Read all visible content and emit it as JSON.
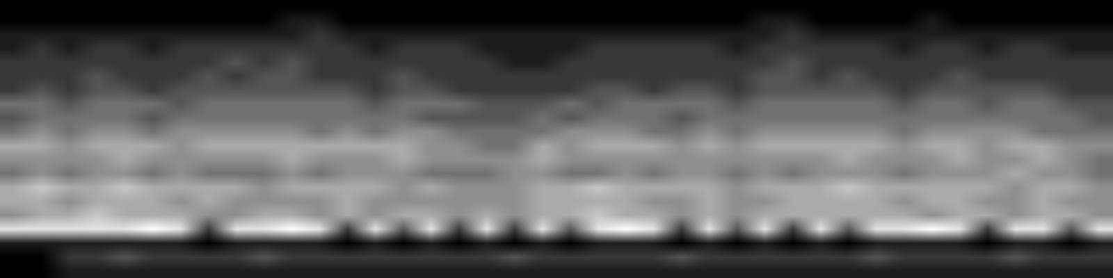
{
  "chart_data": {
    "type": "heatmap",
    "color": "gray",
    "tick_labels": false,
    "zlim": [
      0,
      9
    ],
    "cells": [
      [
        0,
        0,
        0,
        0,
        0,
        0,
        0,
        0,
        0,
        0,
        0,
        0,
        0,
        0,
        0,
        0,
        0,
        0,
        0,
        0,
        0,
        0,
        0,
        0,
        0,
        0,
        0,
        0,
        0,
        0,
        0,
        0,
        0,
        0,
        0,
        0,
        0,
        0,
        0,
        0
      ],
      [
        0,
        0,
        0,
        0,
        0,
        0,
        0,
        0,
        0,
        0,
        1,
        1,
        0,
        0,
        0,
        0,
        0,
        0,
        0,
        0,
        0,
        0,
        0,
        0,
        0,
        0,
        0,
        1,
        1,
        0,
        0,
        0,
        0,
        1,
        0,
        0,
        0,
        0,
        0,
        0
      ],
      [
        1,
        1,
        1,
        1,
        1,
        1,
        1,
        1,
        1,
        1,
        1,
        2,
        1,
        1,
        1,
        1,
        1,
        1,
        1,
        1,
        1,
        1,
        1,
        1,
        1,
        1,
        1,
        1,
        2,
        1,
        1,
        1,
        1,
        1,
        1,
        1,
        1,
        1,
        1,
        1
      ],
      [
        1,
        2,
        1,
        2,
        2,
        1,
        2,
        2,
        2,
        2,
        2,
        2,
        2,
        1,
        2,
        2,
        2,
        1,
        1,
        1,
        1,
        2,
        2,
        2,
        2,
        2,
        1,
        2,
        2,
        2,
        2,
        2,
        1,
        2,
        2,
        1,
        2,
        2,
        1,
        1
      ],
      [
        2,
        2,
        2,
        2,
        2,
        2,
        2,
        2,
        3,
        2,
        3,
        2,
        2,
        2,
        2,
        2,
        2,
        2,
        1,
        1,
        2,
        2,
        2,
        2,
        2,
        2,
        2,
        2,
        3,
        2,
        2,
        2,
        2,
        2,
        2,
        2,
        2,
        2,
        2,
        2
      ],
      [
        2,
        2,
        2,
        3,
        2,
        2,
        2,
        3,
        2,
        3,
        3,
        2,
        2,
        2,
        3,
        2,
        2,
        2,
        2,
        2,
        2,
        2,
        2,
        2,
        2,
        2,
        2,
        3,
        3,
        2,
        3,
        2,
        2,
        2,
        3,
        2,
        2,
        2,
        2,
        2
      ],
      [
        2,
        3,
        2,
        3,
        3,
        2,
        3,
        3,
        3,
        3,
        3,
        3,
        3,
        2,
        3,
        3,
        2,
        2,
        2,
        2,
        2,
        3,
        3,
        2,
        3,
        3,
        2,
        3,
        3,
        3,
        3,
        3,
        2,
        3,
        3,
        3,
        3,
        3,
        2,
        2
      ],
      [
        4,
        4,
        3,
        4,
        4,
        4,
        3,
        4,
        4,
        4,
        4,
        4,
        4,
        3,
        4,
        4,
        4,
        3,
        3,
        3,
        4,
        3,
        4,
        4,
        4,
        4,
        3,
        4,
        4,
        4,
        4,
        4,
        3,
        4,
        4,
        3,
        4,
        4,
        3,
        3
      ],
      [
        3,
        4,
        4,
        4,
        4,
        3,
        4,
        4,
        4,
        4,
        4,
        4,
        4,
        4,
        4,
        3,
        3,
        3,
        3,
        4,
        3,
        4,
        4,
        4,
        3,
        4,
        4,
        4,
        4,
        4,
        4,
        4,
        4,
        4,
        4,
        4,
        4,
        4,
        4,
        3
      ],
      [
        4,
        5,
        4,
        5,
        5,
        4,
        5,
        5,
        5,
        5,
        5,
        4,
        5,
        4,
        5,
        5,
        4,
        4,
        4,
        4,
        5,
        5,
        5,
        4,
        4,
        5,
        4,
        5,
        5,
        5,
        5,
        5,
        4,
        5,
        5,
        5,
        5,
        4,
        4,
        4
      ],
      [
        6,
        6,
        5,
        6,
        6,
        6,
        5,
        6,
        6,
        6,
        6,
        6,
        6,
        6,
        6,
        5,
        5,
        4,
        4,
        6,
        5,
        6,
        6,
        6,
        5,
        6,
        5,
        6,
        6,
        6,
        6,
        6,
        5,
        6,
        6,
        5,
        6,
        6,
        5,
        5
      ],
      [
        5,
        5,
        5,
        5,
        6,
        5,
        5,
        5,
        5,
        5,
        6,
        5,
        5,
        5,
        6,
        5,
        5,
        5,
        5,
        6,
        5,
        5,
        5,
        5,
        5,
        5,
        5,
        5,
        5,
        5,
        6,
        5,
        5,
        5,
        6,
        5,
        5,
        6,
        5,
        4
      ],
      [
        4,
        5,
        4,
        5,
        5,
        4,
        5,
        4,
        4,
        4,
        5,
        4,
        5,
        5,
        5,
        4,
        4,
        4,
        5,
        5,
        4,
        4,
        5,
        4,
        5,
        5,
        4,
        5,
        4,
        5,
        5,
        5,
        4,
        5,
        5,
        5,
        6,
        5,
        5,
        4
      ],
      [
        6,
        7,
        6,
        6,
        7,
        6,
        6,
        6,
        6,
        5,
        6,
        6,
        6,
        6,
        5,
        6,
        5,
        5,
        5,
        6,
        6,
        7,
        6,
        6,
        6,
        6,
        5,
        6,
        6,
        6,
        7,
        6,
        6,
        6,
        6,
        6,
        5,
        6,
        6,
        5
      ],
      [
        6,
        6,
        5,
        6,
        6,
        6,
        5,
        6,
        5,
        5,
        5,
        5,
        6,
        5,
        5,
        5,
        5,
        5,
        5,
        6,
        6,
        6,
        6,
        5,
        5,
        6,
        5,
        5,
        6,
        6,
        6,
        6,
        5,
        6,
        6,
        5,
        5,
        6,
        5,
        5
      ],
      [
        5,
        6,
        6,
        7,
        6,
        6,
        6,
        5,
        5,
        6,
        6,
        5,
        6,
        5,
        6,
        6,
        5,
        6,
        5,
        6,
        6,
        7,
        6,
        6,
        5,
        6,
        5,
        6,
        6,
        6,
        6,
        6,
        6,
        5,
        6,
        6,
        5,
        6,
        6,
        5
      ],
      [
        8,
        8,
        8,
        8,
        8,
        9,
        8,
        2,
        8,
        8,
        9,
        8,
        2,
        8,
        3,
        8,
        2,
        8,
        2,
        8,
        3,
        8,
        9,
        8,
        2,
        8,
        3,
        8,
        2,
        8,
        3,
        8,
        8,
        9,
        8,
        2,
        8,
        8,
        3,
        8
      ],
      [
        1,
        1,
        1,
        1,
        1,
        1,
        1,
        0,
        1,
        1,
        1,
        1,
        0,
        1,
        0,
        1,
        0,
        1,
        0,
        1,
        0,
        1,
        1,
        1,
        0,
        1,
        0,
        1,
        0,
        1,
        0,
        1,
        1,
        1,
        1,
        0,
        1,
        1,
        0,
        1
      ],
      [
        0,
        0,
        2,
        2,
        3,
        2,
        2,
        2,
        2,
        3,
        2,
        2,
        2,
        2,
        2,
        2,
        2,
        2,
        3,
        2,
        2,
        2,
        2,
        2,
        3,
        2,
        2,
        2,
        2,
        2,
        2,
        3,
        2,
        2,
        2,
        2,
        3,
        2,
        2,
        2
      ],
      [
        0,
        0,
        1,
        1,
        1,
        1,
        1,
        1,
        1,
        1,
        1,
        1,
        1,
        1,
        1,
        1,
        1,
        1,
        1,
        1,
        1,
        1,
        1,
        1,
        1,
        1,
        1,
        1,
        1,
        1,
        1,
        1,
        1,
        1,
        1,
        1,
        1,
        1,
        1,
        1
      ]
    ]
  }
}
